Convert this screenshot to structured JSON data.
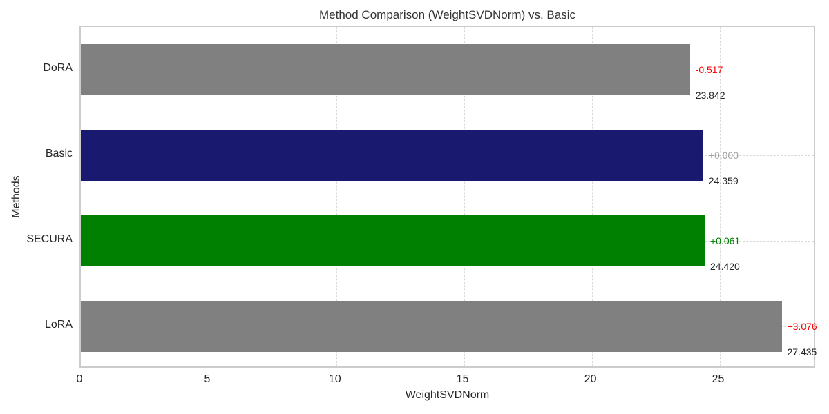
{
  "chart_data": {
    "type": "bar",
    "orientation": "horizontal",
    "title": "Method Comparison (WeightSVDNorm) vs. Basic",
    "xlabel": "WeightSVDNorm",
    "ylabel": "Methods",
    "categories": [
      "DoRA",
      "Basic",
      "SECURA",
      "LoRA"
    ],
    "values": [
      23.842,
      24.359,
      24.42,
      27.435
    ],
    "value_labels": [
      "23.842",
      "24.359",
      "24.420",
      "27.435"
    ],
    "delta_labels": [
      "-0.517",
      "+0.000",
      "+0.061",
      "+3.076"
    ],
    "delta_colors": [
      "#ff0000",
      "#a3a3a3",
      "#008000",
      "#ff0000"
    ],
    "bar_colors": [
      "#808080",
      "#191970",
      "#008000",
      "#808080"
    ],
    "baseline_category": "Basic",
    "xlim": [
      0,
      28.8
    ],
    "xticks": [
      0,
      5,
      10,
      15,
      20,
      25
    ],
    "grid": "dashed-both-axes",
    "legend": "none"
  },
  "colors": {
    "background": "#ffffff",
    "spine": "#cccccc",
    "grid": "#d9d9d9",
    "tick_text": "#262626",
    "title_text": "#333333"
  }
}
